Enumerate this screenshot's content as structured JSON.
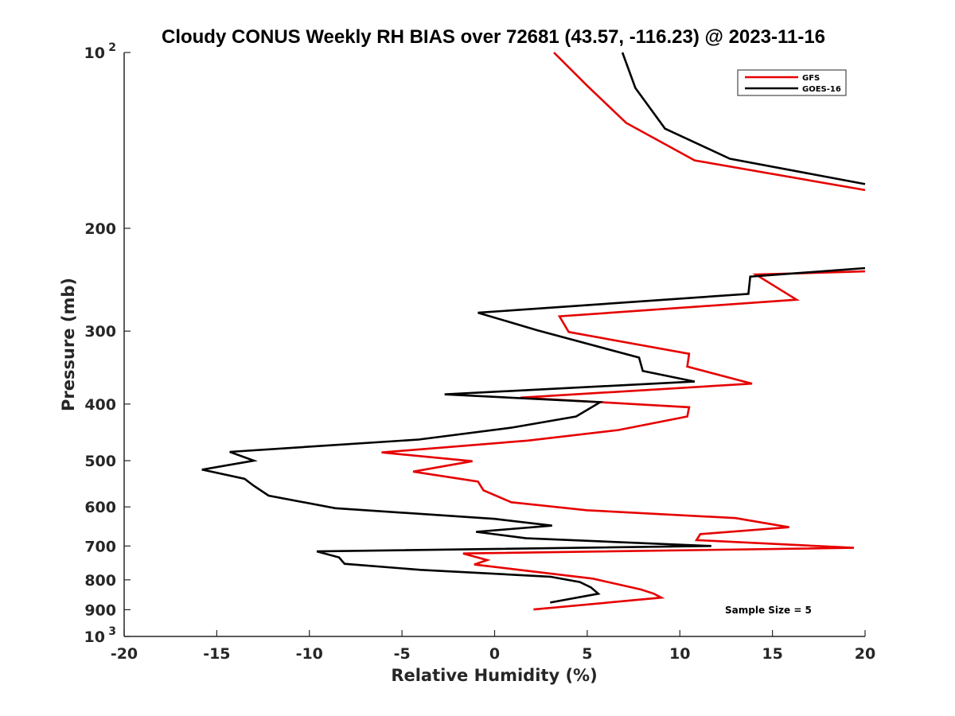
{
  "chart_data": {
    "type": "line",
    "title": "Cloudy CONUS Weekly RH BIAS over 72681 (43.57, -116.23) @ 2023-11-16",
    "xlabel": "Relative Humidity (%)",
    "ylabel": "Pressure (mb)",
    "xlim": [
      -20,
      20
    ],
    "ylim": [
      100,
      1000
    ],
    "y_scale": "log",
    "y_reversed": true,
    "x_ticks": [
      "-20",
      "-15",
      "-10",
      "-5",
      "0",
      "5",
      "10",
      "15",
      "20"
    ],
    "y_ticks": [
      {
        "value": 100,
        "base": "10",
        "exp": "2"
      },
      {
        "value": 200,
        "base": "200",
        "exp": ""
      },
      {
        "value": 300,
        "base": "300",
        "exp": ""
      },
      {
        "value": 400,
        "base": "400",
        "exp": ""
      },
      {
        "value": 500,
        "base": "500",
        "exp": ""
      },
      {
        "value": 600,
        "base": "600",
        "exp": ""
      },
      {
        "value": 700,
        "base": "700",
        "exp": ""
      },
      {
        "value": 800,
        "base": "800",
        "exp": ""
      },
      {
        "value": 900,
        "base": "900",
        "exp": ""
      },
      {
        "value": 1000,
        "base": "10",
        "exp": "3"
      }
    ],
    "grid": false,
    "legend_position": "top-right",
    "annotation": "Sample Size = 5",
    "series": [
      {
        "name": "GFS",
        "color": "#e60000",
        "segments": [
          [
            [
              3.2,
              100
            ],
            [
              5.0,
              114
            ],
            [
              7.1,
              132
            ],
            [
              10.8,
              153
            ],
            [
              20.0,
              172
            ]
          ],
          [
            [
              20.0,
              237
            ],
            [
              14.1,
              240
            ],
            [
              16.3,
              265
            ],
            [
              3.5,
              283
            ],
            [
              4.0,
              301
            ],
            [
              10.5,
              328
            ],
            [
              10.4,
              345
            ],
            [
              13.9,
              369
            ],
            [
              1.4,
              390
            ],
            [
              10.5,
              405
            ],
            [
              10.4,
              420
            ],
            [
              6.7,
              443
            ],
            [
              1.8,
              462
            ],
            [
              -6.1,
              484
            ],
            [
              -1.2,
              501
            ],
            [
              -4.4,
              522
            ],
            [
              -0.9,
              543
            ],
            [
              -0.6,
              562
            ],
            [
              0.9,
              589
            ],
            [
              5.0,
              608
            ],
            [
              13.0,
              627
            ],
            [
              15.9,
              650
            ],
            [
              11.1,
              668
            ],
            [
              10.9,
              684
            ],
            [
              19.4,
              705
            ],
            [
              -1.7,
              721
            ],
            [
              -0.4,
              740
            ],
            [
              -1.1,
              753
            ],
            [
              1.2,
              768
            ],
            [
              5.3,
              796
            ],
            [
              7.9,
              831
            ],
            [
              8.6,
              845
            ],
            [
              9.0,
              858
            ],
            [
              2.1,
              899
            ]
          ]
        ]
      },
      {
        "name": "GOES-16",
        "color": "#000000",
        "segments": [
          [
            [
              6.9,
              100
            ],
            [
              7.6,
              115
            ],
            [
              9.2,
              135
            ],
            [
              12.7,
              152
            ],
            [
              20.0,
              168
            ]
          ],
          [
            [
              20.0,
              234
            ],
            [
              13.8,
              242
            ],
            [
              13.7,
              259
            ],
            [
              -0.9,
              279
            ],
            [
              2.3,
              299
            ],
            [
              7.8,
              333
            ],
            [
              8.0,
              351
            ],
            [
              10.8,
              366
            ],
            [
              -2.7,
              385
            ],
            [
              5.7,
              397
            ],
            [
              4.4,
              420
            ],
            [
              0.9,
              439
            ],
            [
              -4.1,
              460
            ],
            [
              -14.3,
              483
            ],
            [
              -13.0,
              500
            ],
            [
              -15.8,
              518
            ],
            [
              -13.5,
              537
            ],
            [
              -13.0,
              552
            ],
            [
              -12.2,
              574
            ],
            [
              -8.6,
              603
            ],
            [
              0.0,
              629
            ],
            [
              3.1,
              646
            ],
            [
              -1.0,
              662
            ],
            [
              1.7,
              679
            ],
            [
              11.7,
              700
            ],
            [
              -9.6,
              715
            ],
            [
              -8.4,
              732
            ],
            [
              -8.1,
              751
            ],
            [
              -4.0,
              769
            ],
            [
              3.0,
              790
            ],
            [
              4.6,
              807
            ],
            [
              5.2,
              824
            ],
            [
              5.6,
              845
            ],
            [
              3.0,
              875
            ]
          ]
        ]
      }
    ]
  }
}
